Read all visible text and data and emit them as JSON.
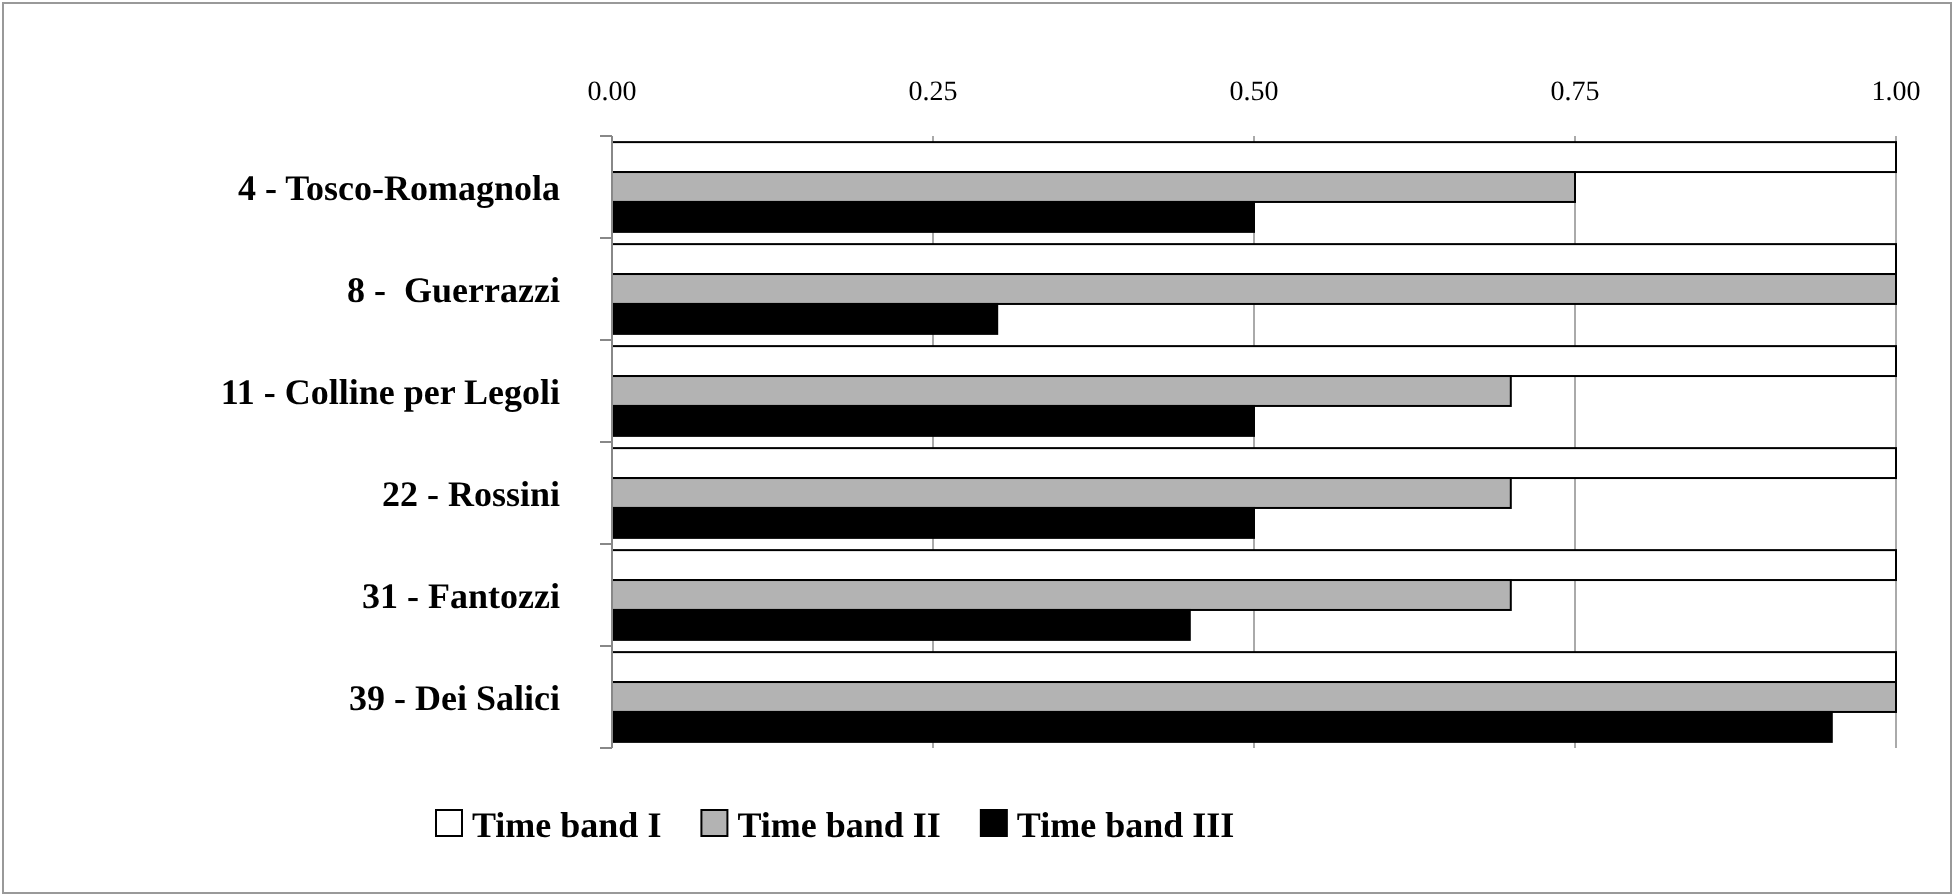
{
  "chart_data": {
    "type": "bar",
    "orientation": "horizontal",
    "categories": [
      "4 - Tosco-Romagnola",
      "8 -  Guerrazzi",
      "11 - Colline per Legoli",
      "22 - Rossini",
      "31 - Fantozzi",
      "39 - Dei Salici"
    ],
    "series": [
      {
        "name": "Time band I",
        "color": "#ffffff",
        "values": [
          1,
          1,
          1,
          1,
          1,
          1
        ]
      },
      {
        "name": "Time band II",
        "color": "#b3b3b3",
        "values": [
          0.75,
          1,
          0.7,
          0.7,
          0.7,
          1
        ]
      },
      {
        "name": "Time band III",
        "color": "#000000",
        "values": [
          0.5,
          0.3,
          0.5,
          0.5,
          0.45,
          0.95
        ]
      }
    ],
    "xlim": [
      0,
      1
    ],
    "xticks": [
      {
        "value": 0,
        "label": "0.00"
      },
      {
        "value": 0.25,
        "label": "0.25"
      },
      {
        "value": 0.5,
        "label": "0.50"
      },
      {
        "value": 0.75,
        "label": "0.75"
      },
      {
        "value": 1,
        "label": "1.00"
      }
    ],
    "grid": "x",
    "legend": "bottom"
  }
}
